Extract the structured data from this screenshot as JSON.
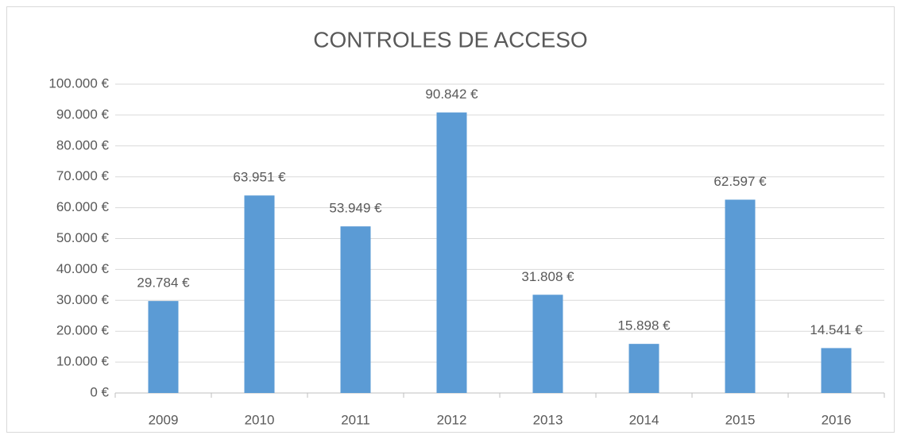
{
  "chart_data": {
    "type": "bar",
    "title": "CONTROLES DE ACCESO",
    "categories": [
      "2009",
      "2010",
      "2011",
      "2012",
      "2013",
      "2014",
      "2015",
      "2016"
    ],
    "values": [
      29784,
      63951,
      53949,
      90842,
      31808,
      15898,
      62597,
      14541
    ],
    "value_labels": [
      "29.784 €",
      "63.951 €",
      "53.949 €",
      "90.842 €",
      "31.808 €",
      "15.898 €",
      "62.597 €",
      "14.541 €"
    ],
    "color": "#5b9bd5",
    "ylim": [
      0,
      100000
    ],
    "yticks": [
      {
        "value": 0,
        "label": "0 €"
      },
      {
        "value": 10000,
        "label": "10.000 €"
      },
      {
        "value": 20000,
        "label": "20.000 €"
      },
      {
        "value": 30000,
        "label": "30.000 €"
      },
      {
        "value": 40000,
        "label": "40.000 €"
      },
      {
        "value": 50000,
        "label": "50.000 €"
      },
      {
        "value": 60000,
        "label": "60.000 €"
      },
      {
        "value": 70000,
        "label": "70.000 €"
      },
      {
        "value": 80000,
        "label": "80.000 €"
      },
      {
        "value": 90000,
        "label": "90.000 €"
      },
      {
        "value": 100000,
        "label": "100.000 €"
      }
    ],
    "grid": true
  }
}
